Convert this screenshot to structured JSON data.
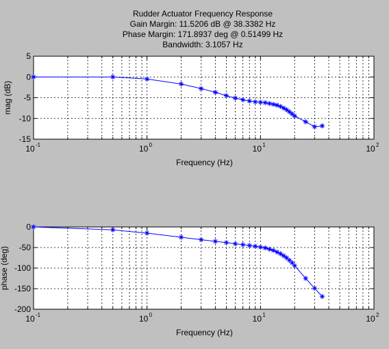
{
  "figure": {
    "title_lines": [
      "Rudder Actuator Frequency Response",
      "Gain Margin: 11.5206 dB @ 38.3382 Hz",
      "Phase Margin: 171.8937 deg @ 0.51499 Hz",
      "Bandwidth: 3.1057 Hz"
    ]
  },
  "chart_data": [
    {
      "type": "line",
      "xscale": "log",
      "title": "Rudder Actuator Frequency Response",
      "xlabel": "Frequency (Hz)",
      "ylabel": "mag (dB)",
      "xlim": [
        0.1,
        100
      ],
      "ylim": [
        -15,
        5
      ],
      "yticks": [
        5,
        0,
        -5,
        -10,
        -15
      ],
      "xtick_bases": [
        "10",
        "10",
        "10",
        "10"
      ],
      "xtick_exponents": [
        "-1",
        "0",
        "1",
        "2"
      ],
      "grid": true,
      "color": "#0000ff",
      "series": [
        {
          "name": "mag",
          "x": [
            0.1,
            0.5,
            1,
            2,
            3,
            4,
            5,
            6,
            7,
            8,
            9,
            10,
            11,
            12,
            13,
            14,
            15,
            16,
            17,
            18,
            19,
            20,
            25,
            30,
            35
          ],
          "y": [
            0,
            0,
            -0.5,
            -1.7,
            -2.8,
            -3.7,
            -4.5,
            -5.1,
            -5.5,
            -5.8,
            -6.0,
            -6.1,
            -6.2,
            -6.4,
            -6.6,
            -6.8,
            -7.1,
            -7.5,
            -7.9,
            -8.4,
            -8.9,
            -9.4,
            -10.8,
            -12.0,
            -11.8
          ]
        }
      ]
    },
    {
      "type": "line",
      "xscale": "log",
      "xlabel": "Frequency (Hz)",
      "ylabel": "phase (deg)",
      "xlim": [
        0.1,
        100
      ],
      "ylim": [
        -200,
        0
      ],
      "yticks": [
        0,
        -50,
        -100,
        -150,
        -200
      ],
      "xtick_bases": [
        "10",
        "10",
        "10",
        "10"
      ],
      "xtick_exponents": [
        "-1",
        "0",
        "1",
        "2"
      ],
      "grid": true,
      "color": "#0000ff",
      "series": [
        {
          "name": "phase",
          "x": [
            0.1,
            0.5,
            1,
            2,
            3,
            4,
            5,
            6,
            7,
            8,
            9,
            10,
            11,
            12,
            13,
            14,
            15,
            16,
            17,
            18,
            19,
            20,
            25,
            30,
            35
          ],
          "y": [
            0,
            -7,
            -15,
            -25,
            -31,
            -35,
            -38,
            -41,
            -43,
            -45,
            -47,
            -49,
            -51,
            -54,
            -57,
            -61,
            -65,
            -70,
            -75,
            -81,
            -87,
            -94,
            -125,
            -149,
            -169
          ]
        }
      ]
    }
  ]
}
